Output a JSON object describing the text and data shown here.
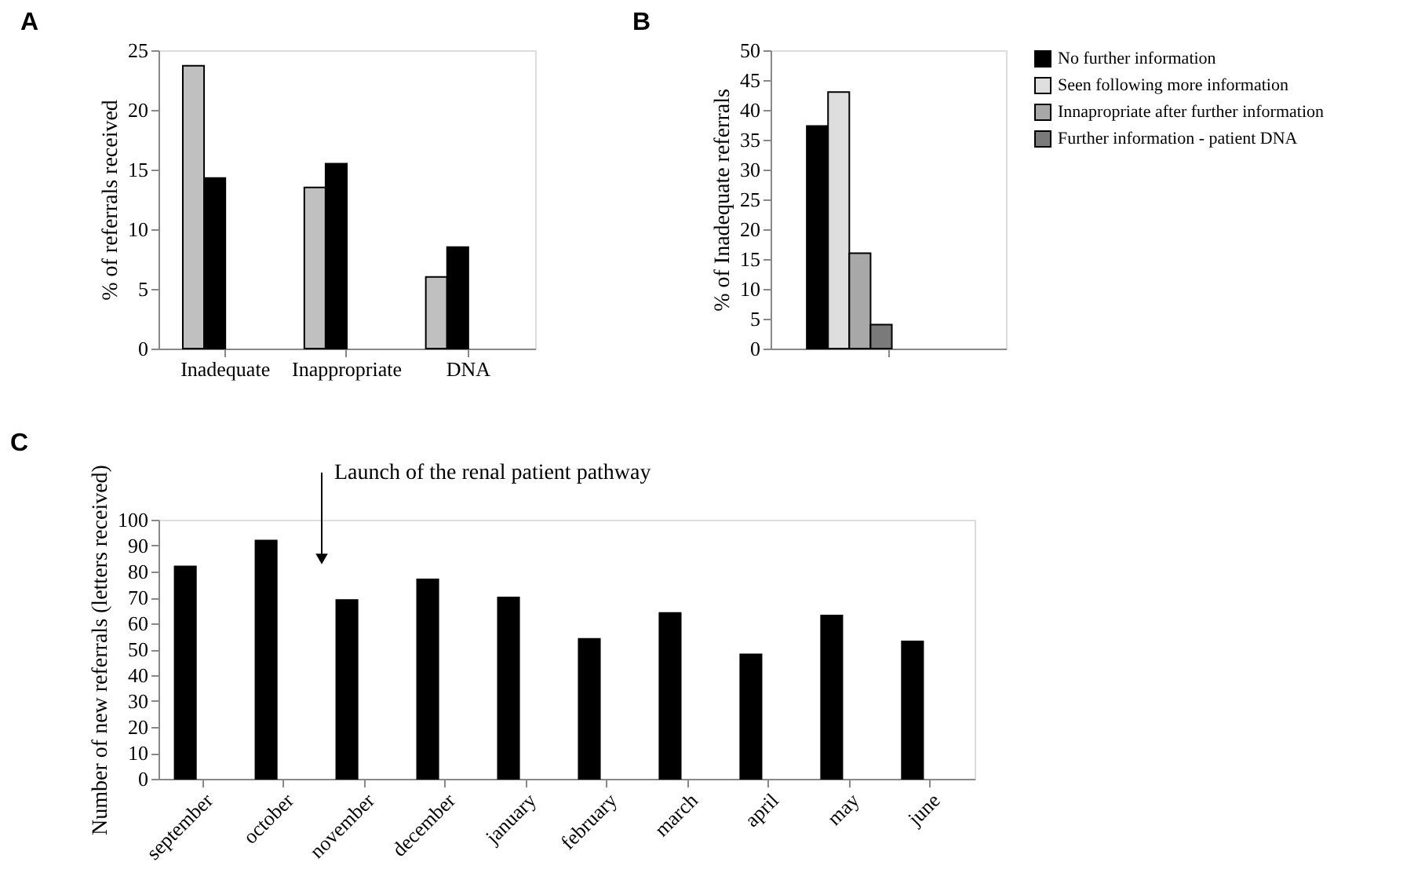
{
  "chart_data": [
    {
      "type": "bar",
      "title": "A",
      "ylabel": "% of referrals received",
      "categories": [
        "Inadequate",
        "Inappropriate",
        "DNA"
      ],
      "series": [
        {
          "color": "#c0c0c0",
          "values": [
            23.7,
            13.5,
            6
          ]
        },
        {
          "color": "#000000",
          "values": [
            14.3,
            15.5,
            8.5
          ]
        }
      ],
      "ylim": [
        0,
        25
      ],
      "yticks": [
        0,
        5,
        10,
        15,
        20,
        25
      ],
      "grid": false
    },
    {
      "type": "bar",
      "title": "B",
      "ylabel": "% of Inadequate referrals",
      "categories": [
        null
      ],
      "series": [
        {
          "name": "No further information",
          "color": "#000000",
          "values": [
            37.3
          ]
        },
        {
          "name": "Seen following more information",
          "color": "#dedede",
          "values": [
            43
          ]
        },
        {
          "name": "Innapropriate after further information",
          "color": "#a8a8a8",
          "values": [
            16
          ]
        },
        {
          "name": "Further information - patient DNA",
          "color": "#7a7a7a",
          "values": [
            4
          ]
        }
      ],
      "ylim": [
        0,
        50
      ],
      "yticks": [
        0,
        5,
        10,
        15,
        20,
        25,
        30,
        35,
        40,
        45,
        50
      ],
      "grid": false,
      "legend": "right",
      "tick_labels": "y"
    },
    {
      "type": "bar",
      "title": "C",
      "ylabel": "Number of new referrals (letters received)",
      "categories": [
        "september",
        "october",
        "november",
        "december",
        "january",
        "february",
        "march",
        "april",
        "may",
        "june"
      ],
      "series": [
        {
          "color": "#000000",
          "values": [
            82,
            92,
            69,
            77,
            70,
            54,
            64,
            48,
            63,
            53
          ]
        }
      ],
      "ylim": [
        0,
        100
      ],
      "yticks": [
        0,
        10,
        20,
        30,
        40,
        50,
        60,
        70,
        80,
        90,
        100
      ],
      "grid": false,
      "annotations": [
        "Launch of the renal patient pathway"
      ]
    }
  ]
}
